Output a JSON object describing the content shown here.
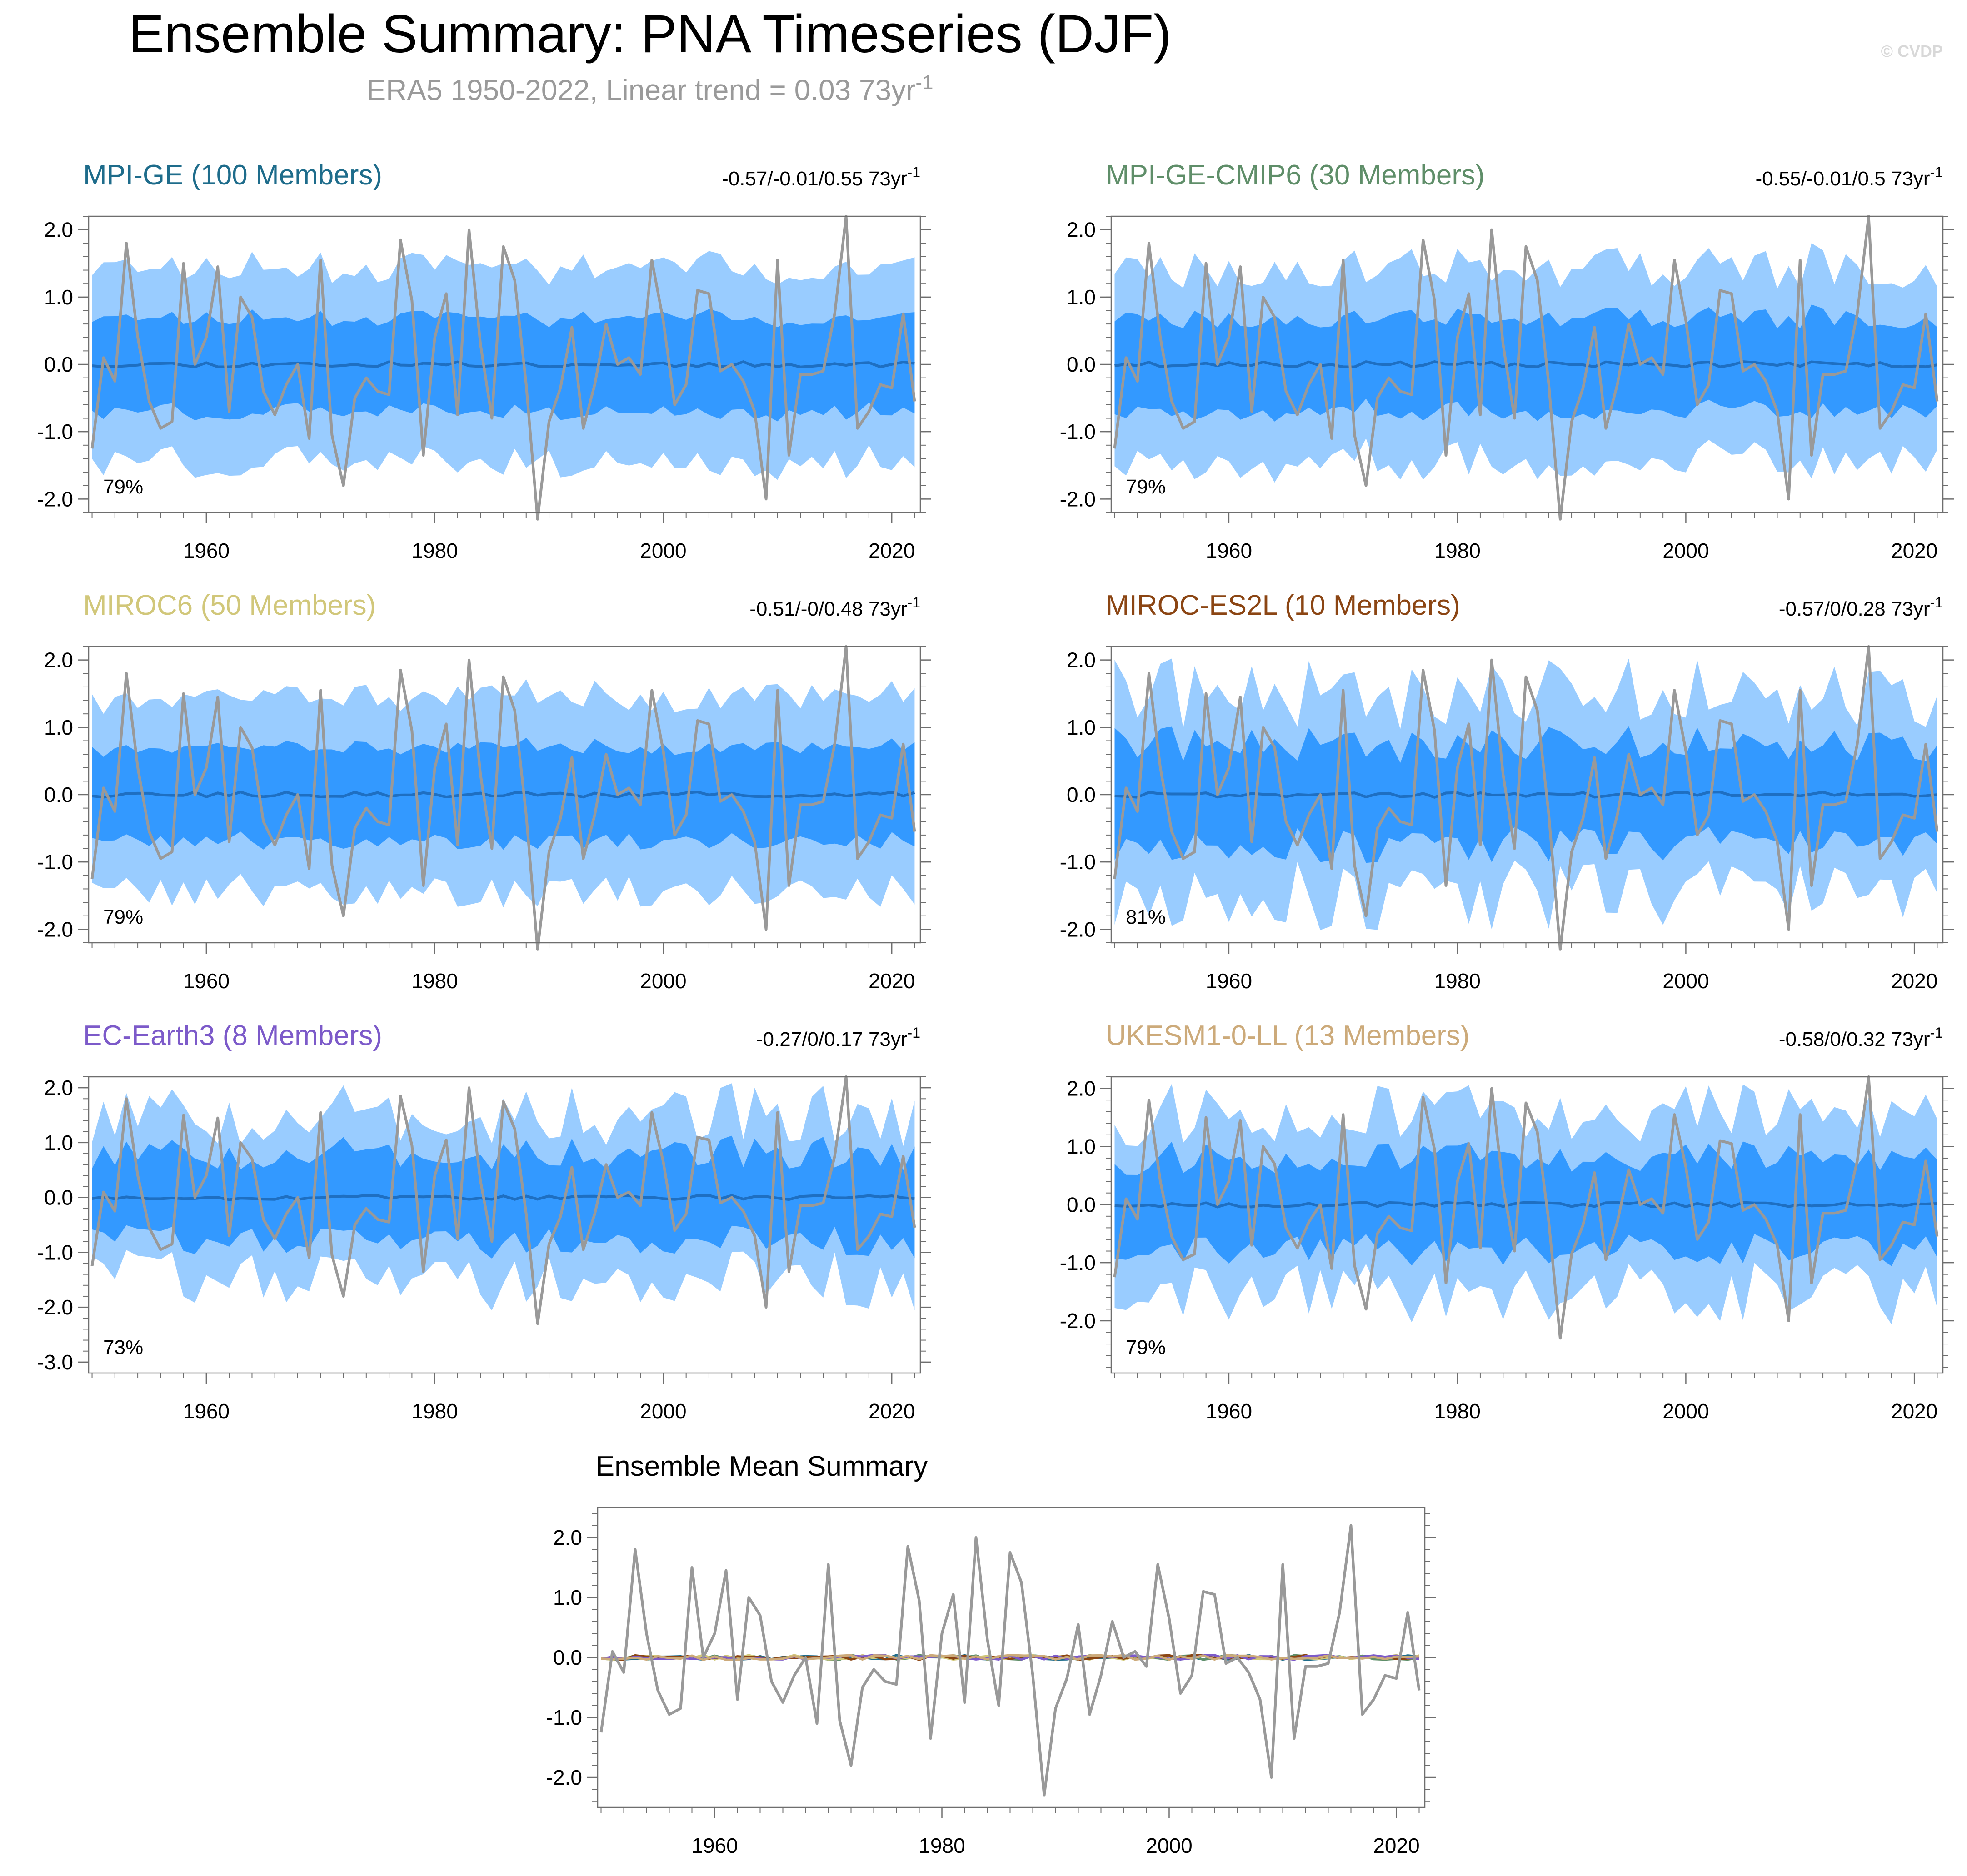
{
  "title": "Ensemble Summary: PNA Timeseries (DJF)",
  "subtitle": "ERA5 1950-2022, Linear trend = 0.03 73yr",
  "subtitle_sup": "-1",
  "copyright": "© CVDP",
  "colors": {
    "outer_band": "#99CCFF",
    "inner_band": "#3399FF",
    "mean_line": "#1E6FC2",
    "obs_line": "#999999",
    "frame": "#6E6E6E"
  },
  "chart_data": {
    "type": "line",
    "x": [
      1950,
      1951,
      1952,
      1953,
      1954,
      1955,
      1956,
      1957,
      1958,
      1959,
      1960,
      1961,
      1962,
      1963,
      1964,
      1965,
      1966,
      1967,
      1968,
      1969,
      1970,
      1971,
      1972,
      1973,
      1974,
      1975,
      1976,
      1977,
      1978,
      1979,
      1980,
      1981,
      1982,
      1983,
      1984,
      1985,
      1986,
      1987,
      1988,
      1989,
      1990,
      1991,
      1992,
      1993,
      1994,
      1995,
      1996,
      1997,
      1998,
      1999,
      2000,
      2001,
      2002,
      2003,
      2004,
      2005,
      2006,
      2007,
      2008,
      2009,
      2010,
      2011,
      2012,
      2013,
      2014,
      2015,
      2016,
      2017,
      2018,
      2019,
      2020,
      2021,
      2022
    ],
    "observed": {
      "name": "ERA5",
      "values": [
        -1.25,
        0.1,
        -0.25,
        1.8,
        0.4,
        -0.55,
        -0.95,
        -0.85,
        1.5,
        0.0,
        0.4,
        1.45,
        -0.7,
        1.0,
        0.7,
        -0.4,
        -0.75,
        -0.3,
        0.0,
        -1.1,
        1.55,
        -1.05,
        -1.8,
        -0.5,
        -0.2,
        -0.4,
        -0.45,
        1.85,
        0.95,
        -1.35,
        0.4,
        1.05,
        -0.75,
        2.0,
        0.3,
        -0.8,
        1.75,
        1.25,
        -0.3,
        -2.3,
        -0.85,
        -0.35,
        0.55,
        -0.95,
        -0.3,
        0.6,
        0.0,
        0.1,
        -0.15,
        1.55,
        0.65,
        -0.6,
        -0.3,
        1.1,
        1.05,
        -0.1,
        0.0,
        -0.25,
        -0.7,
        -2.0,
        1.55,
        -1.35,
        -0.15,
        -0.15,
        -0.1,
        0.75,
        2.2,
        -0.95,
        -0.7,
        -0.3,
        -0.35,
        0.75,
        -0.55
      ]
    },
    "panels": [
      {
        "name": "MPI-GE (100 Members)",
        "color": "#1E6C8B",
        "trend": "-0.57/-0.01/0.55 73yr",
        "pct": "79%",
        "ylim": [
          -2.2,
          2.2
        ],
        "yticks": [
          2.0,
          1.0,
          0.0,
          -1.0,
          -2.0
        ],
        "tick_labels": [
          "2.0",
          "1.0",
          "0.0",
          "-1.0",
          "-2.0"
        ],
        "outer": 1.45,
        "inner": 0.7,
        "var": 0.16,
        "seed": 11
      },
      {
        "name": "MPI-GE-CMIP6 (30 Members)",
        "color": "#5F8E69",
        "trend": "-0.55/-0.01/0.5 73yr",
        "pct": "79%",
        "ylim": [
          -2.2,
          2.2
        ],
        "yticks": [
          2.0,
          1.0,
          0.0,
          -1.0,
          -2.0
        ],
        "tick_labels": [
          "2.0",
          "1.0",
          "0.0",
          "-1.0",
          "-2.0"
        ],
        "outer": 1.45,
        "inner": 0.7,
        "var": 0.22,
        "seed": 23
      },
      {
        "name": "MIROC6 (50 Members)",
        "color": "#D1C77A",
        "trend": "-0.51/-0/0.48 73yr",
        "pct": "79%",
        "ylim": [
          -2.2,
          2.2
        ],
        "yticks": [
          2.0,
          1.0,
          0.0,
          -1.0,
          -2.0
        ],
        "tick_labels": [
          "2.0",
          "1.0",
          "0.0",
          "-1.0",
          "-2.0"
        ],
        "outer": 1.45,
        "inner": 0.7,
        "var": 0.16,
        "seed": 37
      },
      {
        "name": "MIROC-ES2L (10 Members)",
        "color": "#8B4513",
        "trend": "-0.57/0/0.28 73yr",
        "pct": "81%",
        "ylim": [
          -2.2,
          2.2
        ],
        "yticks": [
          2.0,
          1.0,
          0.0,
          -1.0,
          -2.0
        ],
        "tick_labels": [
          "2.0",
          "1.0",
          "0.0",
          "-1.0",
          "-2.0"
        ],
        "outer": 1.5,
        "inner": 0.75,
        "var": 0.35,
        "seed": 41
      },
      {
        "name": "EC-Earth3 (8 Members)",
        "color": "#7C5AC9",
        "trend": "-0.27/0/0.17 73yr",
        "pct": "73%",
        "ylim": [
          -3.2,
          2.2
        ],
        "yticks": [
          2.0,
          1.0,
          0.0,
          -1.0,
          -2.0,
          -3.0
        ],
        "tick_labels": [
          "2.0",
          "1.0",
          "0.0",
          "-1.0",
          "-2.0",
          "-3.0"
        ],
        "outer": 1.5,
        "inner": 0.8,
        "var": 0.38,
        "seed": 53
      },
      {
        "name": "UKESM1-0-LL (13 Members)",
        "color": "#CCAA7A",
        "trend": "-0.58/0/0.32 73yr",
        "pct": "79%",
        "ylim": [
          -2.9,
          2.2
        ],
        "yticks": [
          2.0,
          1.0,
          0.0,
          -1.0,
          -2.0
        ],
        "tick_labels": [
          "2.0",
          "1.0",
          "0.0",
          "-1.0",
          "-2.0"
        ],
        "outer": 1.55,
        "inner": 0.8,
        "var": 0.35,
        "seed": 67
      }
    ],
    "xticks": [
      1960,
      1980,
      2000,
      2020
    ],
    "xtick_labels": [
      "1960",
      "1980",
      "2000",
      "2020"
    ],
    "summary": {
      "title": "Ensemble Mean Summary",
      "ylim": [
        -2.5,
        2.5
      ],
      "yticks": [
        2.0,
        1.0,
        0.0,
        -1.0,
        -2.0
      ],
      "tick_labels": [
        "2.0",
        "1.0",
        "0.0",
        "-1.0",
        "-2.0"
      ],
      "mean_colors": [
        "#1E6C8B",
        "#5F8E69",
        "#D1C77A",
        "#8B4513",
        "#7C5AC9",
        "#CCAA7A"
      ]
    }
  }
}
